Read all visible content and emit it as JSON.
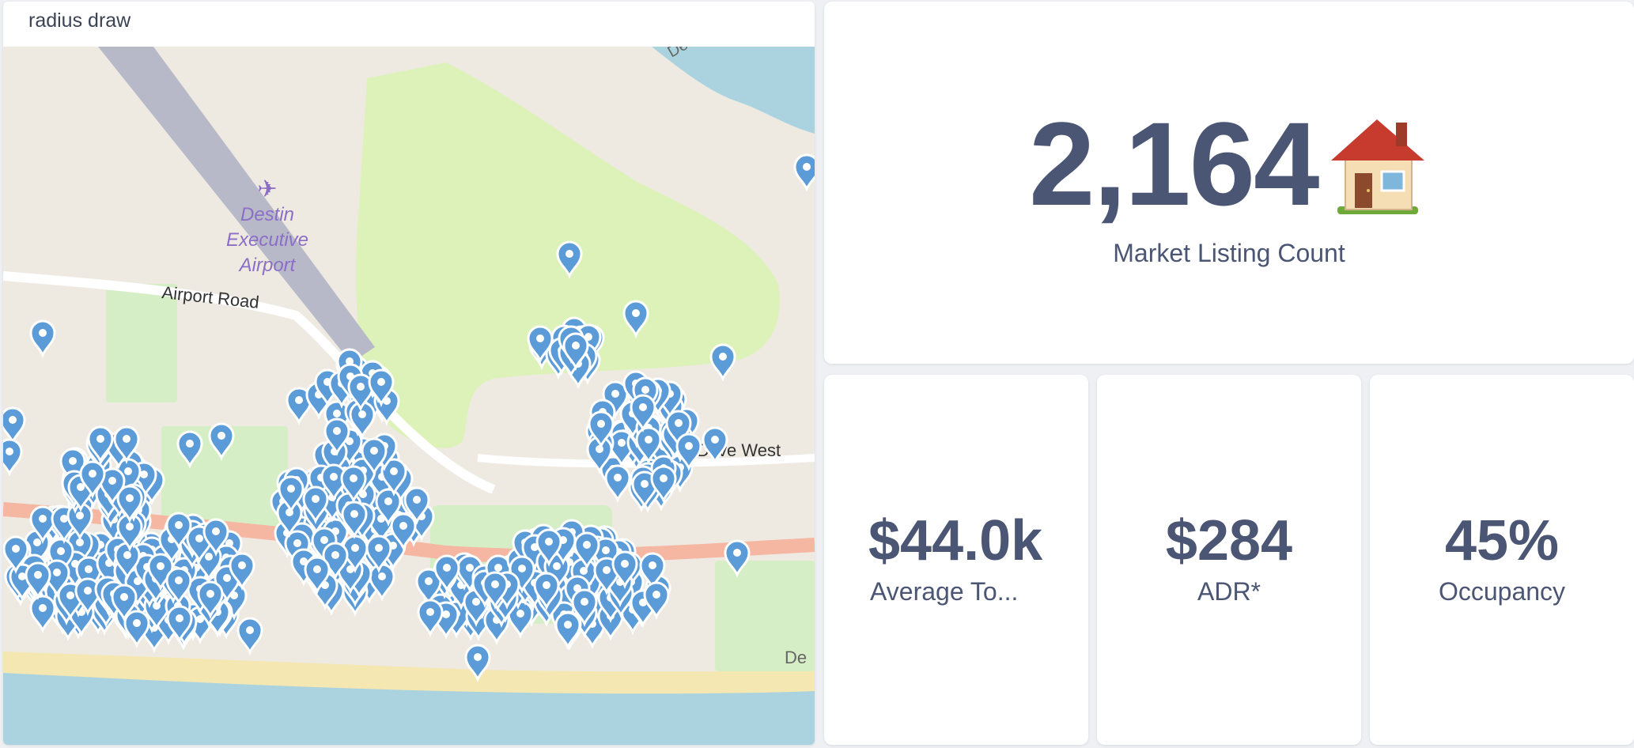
{
  "map": {
    "title": "radius draw",
    "labels": {
      "airport": [
        "Destin",
        "Executive",
        "Airport"
      ],
      "road": "Airport Road",
      "east_road": "s D ive West",
      "edge_label": "De",
      "top_label": "De"
    },
    "colors": {
      "land": "#eeeae2",
      "park": "#d6eec6",
      "golf": "#ddf2b8",
      "water": "#aad3df",
      "beach": "#f4e7b2",
      "runway": "#b8b9c8",
      "coastal_road": "#f5b6a2",
      "marker": "#5b9bd8",
      "label": "#8b6fc6"
    }
  },
  "kpis": {
    "count": {
      "value": "2,164",
      "label": "Market Listing Count",
      "icon": "house-icon"
    },
    "average": {
      "value": "$44.0k",
      "label": "Average To..."
    },
    "adr": {
      "value": "$284",
      "label": "ADR*"
    },
    "occupancy": {
      "value": "45%",
      "label": "Occupancy"
    }
  }
}
